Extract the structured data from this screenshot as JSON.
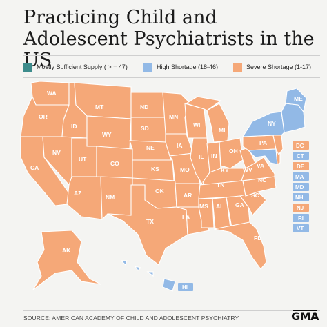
{
  "title": "Practicing Child and Adolescent Psychiatrists in the US",
  "legend": [
    {
      "label": "Mostly Sufficient Supply ( > = 47)",
      "color": "#3d8c8c"
    },
    {
      "label": "High Shortage (18-46)",
      "color": "#92b9e6"
    },
    {
      "label": "Severe Shortage (1-17)",
      "color": "#f5a878"
    }
  ],
  "states": [
    {
      "abbr": "WA",
      "category": "severe"
    },
    {
      "abbr": "OR",
      "category": "severe"
    },
    {
      "abbr": "CA",
      "category": "severe"
    },
    {
      "abbr": "NV",
      "category": "severe"
    },
    {
      "abbr": "ID",
      "category": "severe"
    },
    {
      "abbr": "MT",
      "category": "severe"
    },
    {
      "abbr": "WY",
      "category": "severe"
    },
    {
      "abbr": "UT",
      "category": "severe"
    },
    {
      "abbr": "AZ",
      "category": "severe"
    },
    {
      "abbr": "CO",
      "category": "severe"
    },
    {
      "abbr": "NM",
      "category": "severe"
    },
    {
      "abbr": "ND",
      "category": "severe"
    },
    {
      "abbr": "SD",
      "category": "severe"
    },
    {
      "abbr": "NE",
      "category": "severe"
    },
    {
      "abbr": "KS",
      "category": "severe"
    },
    {
      "abbr": "OK",
      "category": "severe"
    },
    {
      "abbr": "TX",
      "category": "severe"
    },
    {
      "abbr": "MN",
      "category": "severe"
    },
    {
      "abbr": "IA",
      "category": "severe"
    },
    {
      "abbr": "MO",
      "category": "severe"
    },
    {
      "abbr": "AR",
      "category": "severe"
    },
    {
      "abbr": "LA",
      "category": "severe"
    },
    {
      "abbr": "WI",
      "category": "severe"
    },
    {
      "abbr": "IL",
      "category": "severe"
    },
    {
      "abbr": "MI",
      "category": "severe"
    },
    {
      "abbr": "IN",
      "category": "severe"
    },
    {
      "abbr": "OH",
      "category": "severe"
    },
    {
      "abbr": "KY",
      "category": "severe"
    },
    {
      "abbr": "TN",
      "category": "severe"
    },
    {
      "abbr": "MS",
      "category": "severe"
    },
    {
      "abbr": "AL",
      "category": "severe"
    },
    {
      "abbr": "GA",
      "category": "severe"
    },
    {
      "abbr": "FL",
      "category": "severe"
    },
    {
      "abbr": "SC",
      "category": "severe"
    },
    {
      "abbr": "NC",
      "category": "severe"
    },
    {
      "abbr": "VA",
      "category": "severe"
    },
    {
      "abbr": "WV",
      "category": "severe"
    },
    {
      "abbr": "PA",
      "category": "severe"
    },
    {
      "abbr": "NY",
      "category": "high"
    },
    {
      "abbr": "ME",
      "category": "high"
    },
    {
      "abbr": "AK",
      "category": "severe"
    },
    {
      "abbr": "HI",
      "category": "high"
    }
  ],
  "small_states": [
    {
      "abbr": "DC",
      "category": "severe"
    },
    {
      "abbr": "CT",
      "category": "high"
    },
    {
      "abbr": "DE",
      "category": "severe"
    },
    {
      "abbr": "MA",
      "category": "high"
    },
    {
      "abbr": "MD",
      "category": "high"
    },
    {
      "abbr": "NH",
      "category": "high"
    },
    {
      "abbr": "NJ",
      "category": "severe"
    },
    {
      "abbr": "RI",
      "category": "high"
    },
    {
      "abbr": "VT",
      "category": "high"
    }
  ],
  "colors": {
    "severe": "#f5a878",
    "high": "#92b9e6",
    "sufficient": "#3d8c8c"
  },
  "source": "SOURCE: AMERICAN ACADEMY OF CHILD AND ADOLESCENT PSYCHIATRY",
  "logo": "GMA"
}
